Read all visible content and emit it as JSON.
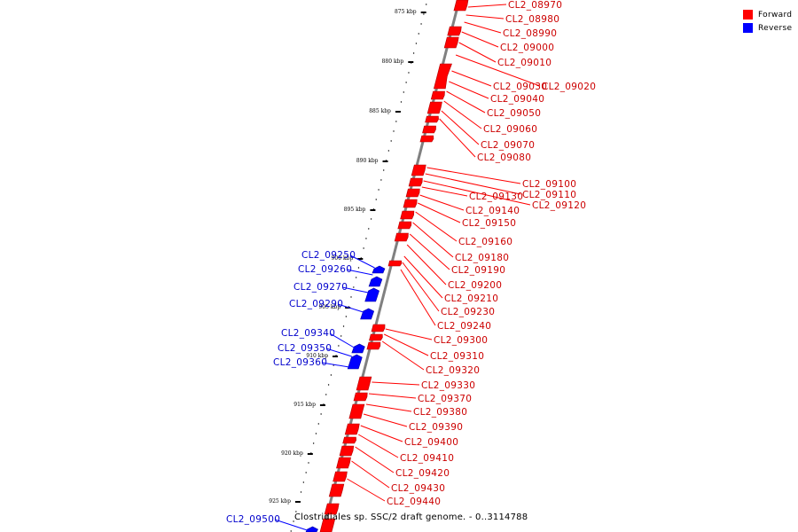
{
  "colors": {
    "forward": "#ff0000",
    "reverse": "#0000ff",
    "backbone": "#808080",
    "tick": "#000000"
  },
  "legend": [
    {
      "label": "Forward",
      "color": "#ff0000"
    },
    {
      "label": "Reverse",
      "color": "#0000ff"
    }
  ],
  "caption": "Clostridiales sp. SSC/2 draft genome. - 0..3114788",
  "scale_ticks": [
    "875 kbp",
    "880 kbp",
    "885 kbp",
    "890 kbp",
    "895 kbp",
    "900 kbp",
    "905 kbp",
    "910 kbp",
    "915 kbp",
    "920 kbp",
    "925 kbp"
  ],
  "forward_genes": [
    "CL2_08970",
    "CL2_08980",
    "CL2_08990",
    "CL2_09000",
    "CL2_09010",
    "CL2_09020",
    "CL2_09030",
    "CL2_09040",
    "CL2_09050",
    "CL2_09060",
    "CL2_09070",
    "CL2_09080",
    "CL2_09100",
    "CL2_09110",
    "CL2_09120",
    "CL2_09130",
    "CL2_09140",
    "CL2_09150",
    "CL2_09160",
    "CL2_09180",
    "CL2_09190",
    "CL2_09200",
    "CL2_09210",
    "CL2_09230",
    "CL2_09240",
    "CL2_09300",
    "CL2_09310",
    "CL2_09320",
    "CL2_09330",
    "CL2_09370",
    "CL2_09380",
    "CL2_09390",
    "CL2_09400",
    "CL2_09410",
    "CL2_09420",
    "CL2_09430",
    "CL2_09440"
  ],
  "reverse_genes": [
    "CL2_09250",
    "CL2_09260",
    "CL2_09270",
    "CL2_09290",
    "CL2_09340",
    "CL2_09350",
    "CL2_09360",
    "CL2_09500"
  ]
}
